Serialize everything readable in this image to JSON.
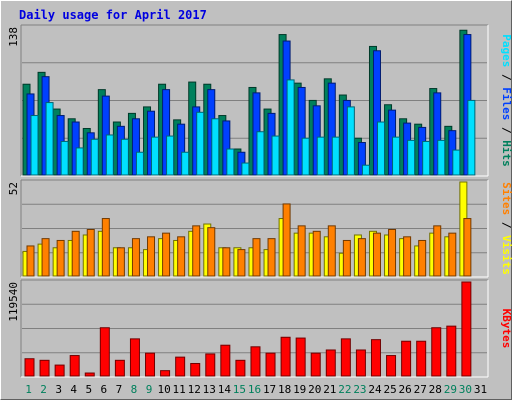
{
  "title": "Daily usage for April 2017",
  "colors": {
    "hits": "#00805c",
    "files": "#0040ff",
    "pages": "#00e0ff",
    "visits": "#ffff00",
    "sites": "#ff8000",
    "kbytes": "#ff0000",
    "weekend_label": "#00805c",
    "weekday_label": "#000000"
  },
  "chart_data": [
    {
      "type": "bar",
      "panel": "usage",
      "ymax_label": "138",
      "ylim": [
        0,
        138
      ],
      "categories": [
        "1",
        "2",
        "3",
        "4",
        "5",
        "6",
        "7",
        "8",
        "9",
        "10",
        "11",
        "12",
        "13",
        "14",
        "15",
        "16",
        "17",
        "18",
        "19",
        "20",
        "21",
        "22",
        "23",
        "24",
        "25",
        "26",
        "27",
        "28",
        "29",
        "30",
        "31"
      ],
      "weekend_days": [
        "1",
        "2",
        "8",
        "9",
        "15",
        "16",
        "22",
        "23",
        "29",
        "30"
      ],
      "series": [
        {
          "name": "Hits",
          "values": [
            85,
            96,
            62,
            53,
            44,
            80,
            50,
            58,
            64,
            85,
            52,
            87,
            85,
            56,
            25,
            82,
            62,
            131,
            86,
            70,
            90,
            75,
            35,
            120,
            66,
            53,
            48,
            81,
            46,
            135,
            0
          ]
        },
        {
          "name": "Files",
          "values": [
            76,
            92,
            56,
            50,
            40,
            74,
            46,
            53,
            60,
            80,
            48,
            64,
            80,
            51,
            22,
            77,
            58,
            125,
            82,
            65,
            86,
            70,
            31,
            116,
            61,
            49,
            45,
            77,
            42,
            131,
            0
          ]
        },
        {
          "name": "Pages",
          "values": [
            56,
            68,
            32,
            26,
            34,
            38,
            34,
            22,
            36,
            37,
            22,
            59,
            53,
            25,
            12,
            41,
            37,
            89,
            35,
            36,
            36,
            64,
            10,
            50,
            36,
            33,
            32,
            33,
            24,
            70,
            0
          ]
        }
      ],
      "axis_labels": [
        "Pages",
        "Files",
        "Hits"
      ]
    },
    {
      "type": "bar",
      "panel": "visitors",
      "ymax_label": "52",
      "ylim": [
        0,
        52
      ],
      "categories": [
        "1",
        "2",
        "3",
        "4",
        "5",
        "6",
        "7",
        "8",
        "9",
        "10",
        "11",
        "12",
        "13",
        "14",
        "15",
        "16",
        "17",
        "18",
        "19",
        "20",
        "21",
        "22",
        "23",
        "24",
        "25",
        "26",
        "27",
        "28",
        "29",
        "30",
        "31"
      ],
      "series": [
        {
          "name": "Visits",
          "values": [
            14,
            18,
            16,
            20,
            23,
            25,
            16,
            16,
            15,
            21,
            20,
            25,
            29,
            16,
            16,
            16,
            15,
            32,
            24,
            24,
            22,
            13,
            23,
            25,
            23,
            21,
            17,
            24,
            22,
            52,
            0
          ]
        },
        {
          "name": "Sites",
          "values": [
            17,
            21,
            20,
            25,
            26,
            32,
            16,
            21,
            22,
            24,
            22,
            28,
            27,
            16,
            15,
            21,
            21,
            40,
            28,
            25,
            28,
            20,
            21,
            24,
            26,
            22,
            20,
            28,
            24,
            32,
            0
          ]
        }
      ],
      "axis_labels": [
        "Sites",
        "Visits"
      ]
    },
    {
      "type": "bar",
      "panel": "volume",
      "ymax_label": "119540",
      "ylim": [
        0,
        119540
      ],
      "categories": [
        "1",
        "2",
        "3",
        "4",
        "5",
        "6",
        "7",
        "8",
        "9",
        "10",
        "11",
        "12",
        "13",
        "14",
        "15",
        "16",
        "17",
        "18",
        "19",
        "20",
        "21",
        "22",
        "23",
        "24",
        "25",
        "26",
        "27",
        "28",
        "29",
        "30",
        "31"
      ],
      "series": [
        {
          "name": "KBytes",
          "values": [
            23000,
            21000,
            15000,
            27000,
            5000,
            62000,
            21000,
            48000,
            30000,
            8000,
            25000,
            17000,
            29000,
            40000,
            21000,
            38000,
            30000,
            50000,
            49000,
            30000,
            34000,
            48000,
            34000,
            47000,
            27000,
            45000,
            45000,
            62000,
            64000,
            119540,
            0
          ]
        }
      ],
      "axis_labels": [
        "KBytes"
      ]
    }
  ]
}
